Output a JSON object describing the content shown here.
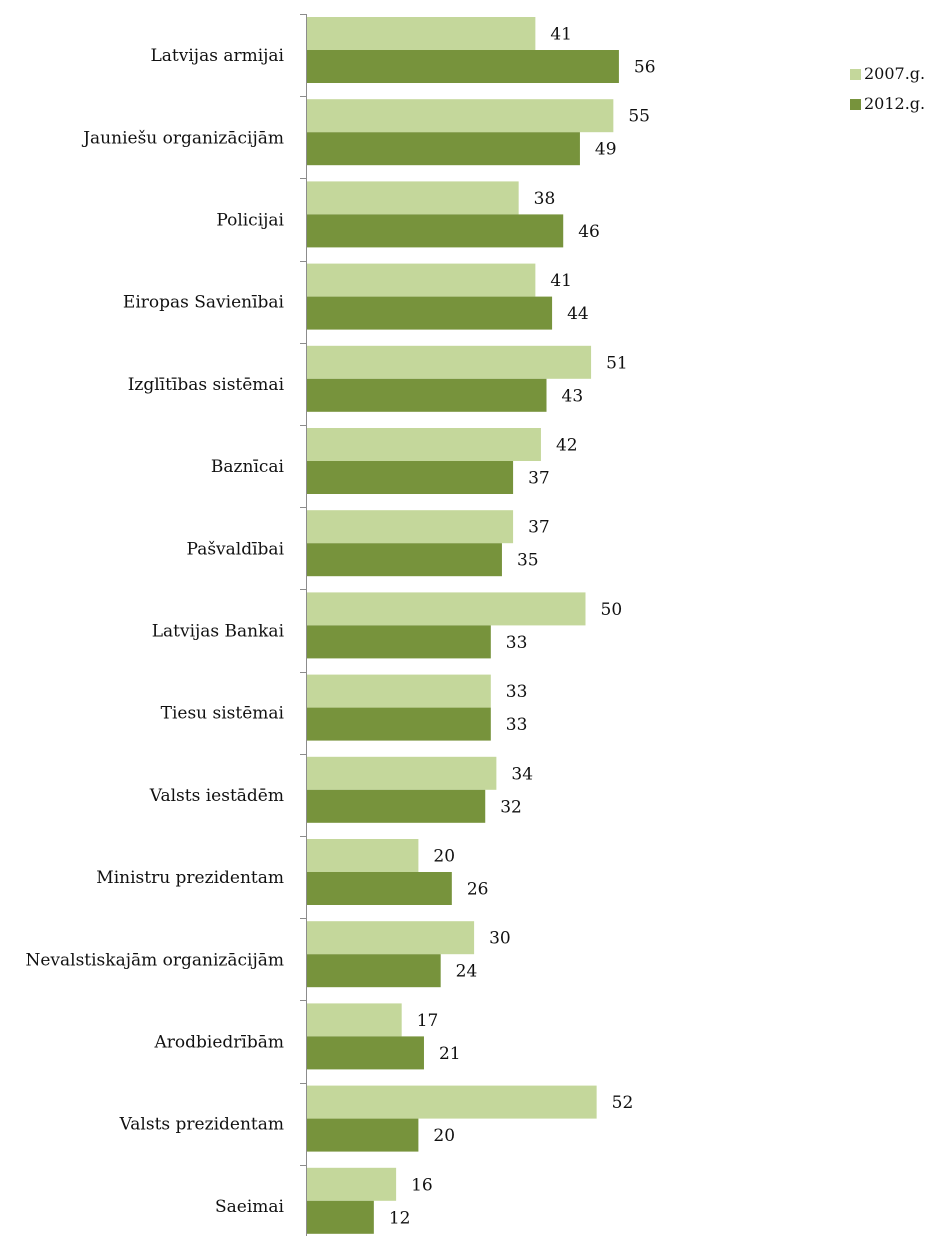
{
  "chart_data": {
    "type": "bar",
    "orientation": "horizontal",
    "categories": [
      "Latvijas armijai",
      "Jauniešu organizācijām",
      "Policijai",
      "Eiropas Savienībai",
      "Izglītības sistēmai",
      "Baznīcai",
      "Pašvaldībai",
      "Latvijas Bankai",
      "Tiesu sistēmai",
      "Valsts iestādēm",
      "Ministru prezidentam",
      "Nevalstiskajām organizācijām",
      "Arodbiedrībām",
      "Valsts prezidentam",
      "Saeimai"
    ],
    "series": [
      {
        "name": "2007.g.",
        "color": "#c4d79b",
        "values": [
          41,
          55,
          38,
          41,
          51,
          42,
          37,
          50,
          33,
          34,
          20,
          30,
          17,
          52,
          16
        ]
      },
      {
        "name": "2012.g.",
        "color": "#77933c",
        "values": [
          56,
          49,
          46,
          44,
          43,
          37,
          35,
          33,
          33,
          32,
          26,
          24,
          21,
          20,
          12
        ]
      }
    ],
    "xlim": [
      0,
      100
    ],
    "data_labels": true,
    "gridlines": false,
    "legend_position": "top-right"
  }
}
